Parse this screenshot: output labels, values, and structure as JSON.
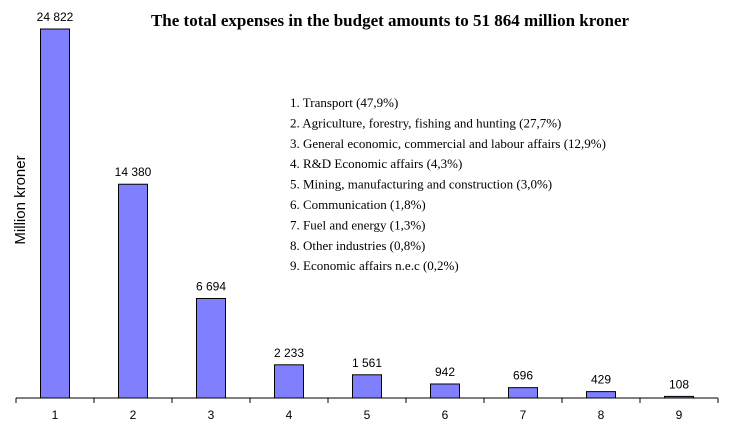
{
  "chart_data": {
    "type": "bar",
    "title": "The total expenses in the budget amounts to 51 864 million kroner",
    "xlabel": "",
    "ylabel": "Million kroner",
    "categories": [
      "1",
      "2",
      "3",
      "4",
      "5",
      "6",
      "7",
      "8",
      "9"
    ],
    "values": [
      24822,
      14380,
      6694,
      2233,
      1561,
      942,
      696,
      429,
      108
    ],
    "value_labels": [
      "24 822",
      "14 380",
      "6 694",
      "2 233",
      "1 561",
      "942",
      "696",
      "429",
      "108"
    ],
    "ylim": [
      0,
      24822
    ],
    "grid": false,
    "bar_color": "#8080ff",
    "bar_edge_color": "#000000",
    "legend_position": "top-center",
    "legend": [
      "1. Transport (47,9%)",
      "2. Agriculture, forestry, fishing and hunting (27,7%)",
      "3. General economic, commercial and labour affairs (12,9%)",
      "4. R&D Economic affairs (4,3%)",
      "5. Mining, manufacturing and construction (3,0%)",
      "6. Communication (1,8%)",
      "7. Fuel and energy (1,3%)",
      "8. Other industries (0,8%)",
      "9. Economic affairs n.e.c (0,2%)"
    ]
  }
}
